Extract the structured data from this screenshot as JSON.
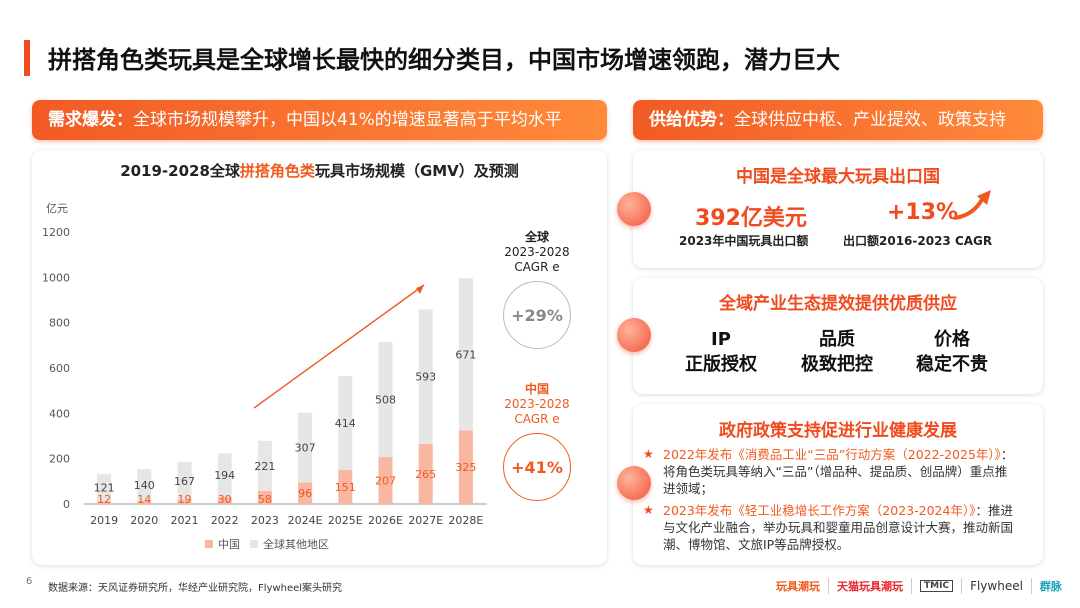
{
  "page": {
    "number": "6"
  },
  "title": "拼搭角色类玩具是全球增长最快的细分类目，中国市场增速领跑，潜力巨大",
  "left_pill": {
    "lead": "需求爆发：",
    "text": "全球市场规模攀升，中国以41%的增速显著高于平均水平"
  },
  "right_pill": {
    "lead": "供给优势：",
    "text": "全球供应中枢、产业提效、政策支持"
  },
  "chart": {
    "title_pre": "2019-2028全球",
    "title_hl": "拼搭角色类",
    "title_post": "玩具市场规模（GMV）及预测",
    "unit": "亿元"
  },
  "chart_data": {
    "type": "bar",
    "stacked": true,
    "categories": [
      "2019",
      "2020",
      "2021",
      "2022",
      "2023",
      "2024E",
      "2025E",
      "2026E",
      "2027E",
      "2028E"
    ],
    "series": [
      {
        "name": "中国",
        "color": "#f9b7a2",
        "values": [
          12,
          14,
          19,
          30,
          58,
          96,
          151,
          207,
          265,
          325
        ]
      },
      {
        "name": "全球其他地区",
        "color": "#e6e6e6",
        "values": [
          121,
          140,
          167,
          194,
          221,
          307,
          414,
          508,
          593,
          671
        ]
      }
    ],
    "ylim": [
      0,
      1200
    ],
    "yticks": [
      0,
      200,
      400,
      600,
      800,
      1000,
      1200
    ],
    "ylabel": "亿元",
    "legend_position": "bottom",
    "grid": false
  },
  "cagr": {
    "global": {
      "line1": "全球",
      "line2": "2023-2028",
      "line3": "CAGR e",
      "value": "+29%"
    },
    "china": {
      "line1": "中国",
      "line2": "2023-2028",
      "line3": "CAGR e",
      "value": "+41%"
    }
  },
  "export_card": {
    "title": "中国是全球最大玩具出口国",
    "stat1_value": "392亿美元",
    "stat1_label": "2023年中国玩具出口额",
    "stat2_value": "+13%",
    "stat2_label": "出口额2016-2023 CAGR"
  },
  "supply_card": {
    "title": "全域产业生态提效提供优质供应",
    "cols": [
      {
        "line1": "IP",
        "line2": "正版授权"
      },
      {
        "line1": "品质",
        "line2": "极致把控"
      },
      {
        "line1": "价格",
        "line2": "稳定不贵"
      }
    ]
  },
  "policy_card": {
    "title": "政府政策支持促进行业健康发展",
    "item1_hl": "2022年发布《消费品工业“三品”行动方案（2022-2025年）》",
    "item1_text": "：将角色类玩具等纳入“三品”（增品种、提品质、创品牌）重点推进领域；",
    "item2_hl": "2023年发布《轻工业稳增长工作方案（2023-2024年）》",
    "item2_text": "：推进与文化产业融合，举办玩具和婴童用品创意设计大赛，推动新国潮、博物馆、文旅IP等品牌授权。"
  },
  "footer": "数据来源：天风证券研究所，华经产业研究院，Flywheel案头研究",
  "logos": [
    "玩具潮玩",
    "天猫玩具潮玩",
    "TMIC",
    "Flywheel",
    "群脉"
  ],
  "colors": {
    "accent": "#f04a1d",
    "china": "#f9b7a2",
    "rest": "#e6e6e6"
  }
}
